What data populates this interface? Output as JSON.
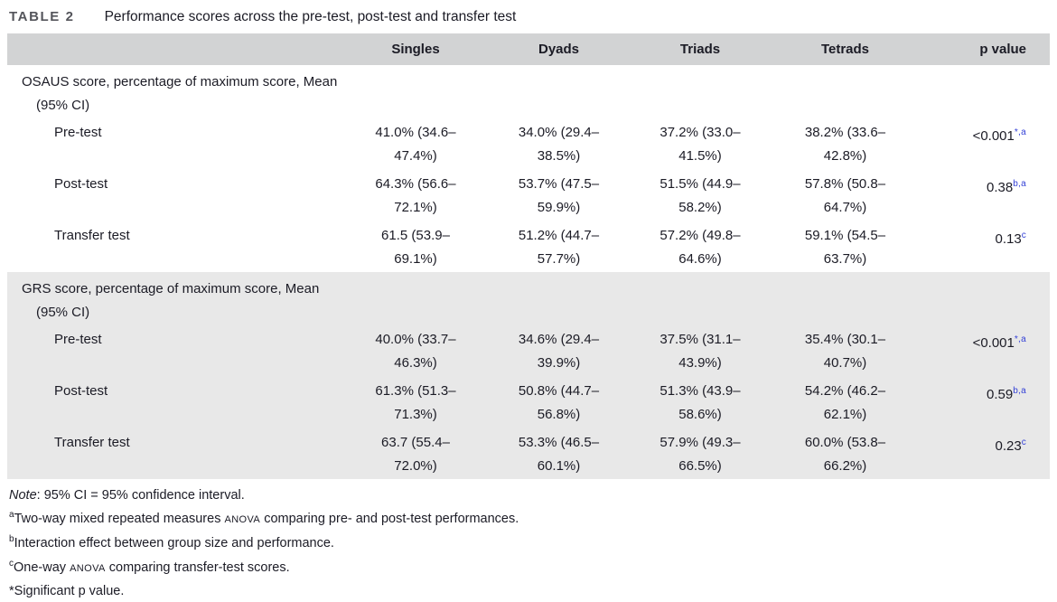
{
  "title": {
    "label": "TABLE 2",
    "text": "Performance scores across the pre-test, post-test and transfer test"
  },
  "table": {
    "columns": [
      "Singles",
      "Dyads",
      "Triads",
      "Tetrads",
      "p value"
    ],
    "sections": [
      {
        "label_line1": "OSAUS score, percentage of maximum score, Mean",
        "label_line2": "(95% CI)",
        "rows": [
          {
            "label": "Pre-test",
            "singles": "41.0% (34.6–47.4%)",
            "dyads": "34.0% (29.4–38.5%)",
            "triads": "37.2% (33.0–41.5%)",
            "tetrads": "38.2% (33.6–42.8%)",
            "p": "<0.001",
            "p_sup": "*,a"
          },
          {
            "label": "Post-test",
            "singles": "64.3% (56.6–72.1%)",
            "dyads": "53.7% (47.5–59.9%)",
            "triads": "51.5% (44.9–58.2%)",
            "tetrads": "57.8% (50.8–64.7%)",
            "p": "0.38",
            "p_sup": "b,a"
          },
          {
            "label": "Transfer test",
            "singles": "61.5 (53.9–69.1%)",
            "dyads": "51.2% (44.7–57.7%)",
            "triads": "57.2% (49.8–64.6%)",
            "tetrads": "59.1% (54.5–63.7%)",
            "p": "0.13",
            "p_sup": "c"
          }
        ]
      },
      {
        "label_line1": "GRS score, percentage of maximum score, Mean",
        "label_line2": "(95% CI)",
        "rows": [
          {
            "label": "Pre-test",
            "singles": "40.0% (33.7–46.3%)",
            "dyads": "34.6% (29.4–39.9%)",
            "triads": "37.5% (31.1–43.9%)",
            "tetrads": "35.4% (30.1–40.7%)",
            "p": "<0.001",
            "p_sup": "*,a"
          },
          {
            "label": "Post-test",
            "singles": "61.3% (51.3–71.3%)",
            "dyads": "50.8% (44.7–56.8%)",
            "triads": "51.3% (43.9–58.6%)",
            "tetrads": "54.2% (46.2–62.1%)",
            "p": "0.59",
            "p_sup": "b,a"
          },
          {
            "label": "Transfer test",
            "singles": "63.7 (55.4–72.0%)",
            "dyads": "53.3% (46.5–60.1%)",
            "triads": "57.9% (49.3–66.5%)",
            "tetrads": "60.0% (53.8–66.2%)",
            "p": "0.23",
            "p_sup": "c"
          }
        ]
      }
    ]
  },
  "note": {
    "italic": "Note",
    "rest": ": 95% CI = 95% confidence interval."
  },
  "footnotes": [
    {
      "sup": "a",
      "pre": "Two-way mixed repeated measures ",
      "caps": "ANOVA",
      "post": " comparing pre- and post-test performances."
    },
    {
      "sup": "b",
      "pre": "Interaction effect between group size and performance.",
      "caps": "",
      "post": ""
    },
    {
      "sup": "c",
      "pre": "One-way ",
      "caps": "ANOVA",
      "post": " comparing transfer-test scores."
    },
    {
      "sup": "",
      "pre": "*Significant p value.",
      "caps": "",
      "post": ""
    }
  ],
  "colors": {
    "header_bg": "#d2d3d4",
    "shaded_section_bg": "#e8e8e8",
    "superscript_blue": "#3340d6",
    "text": "#1b1b25",
    "table_label_gray": "#54555b"
  }
}
